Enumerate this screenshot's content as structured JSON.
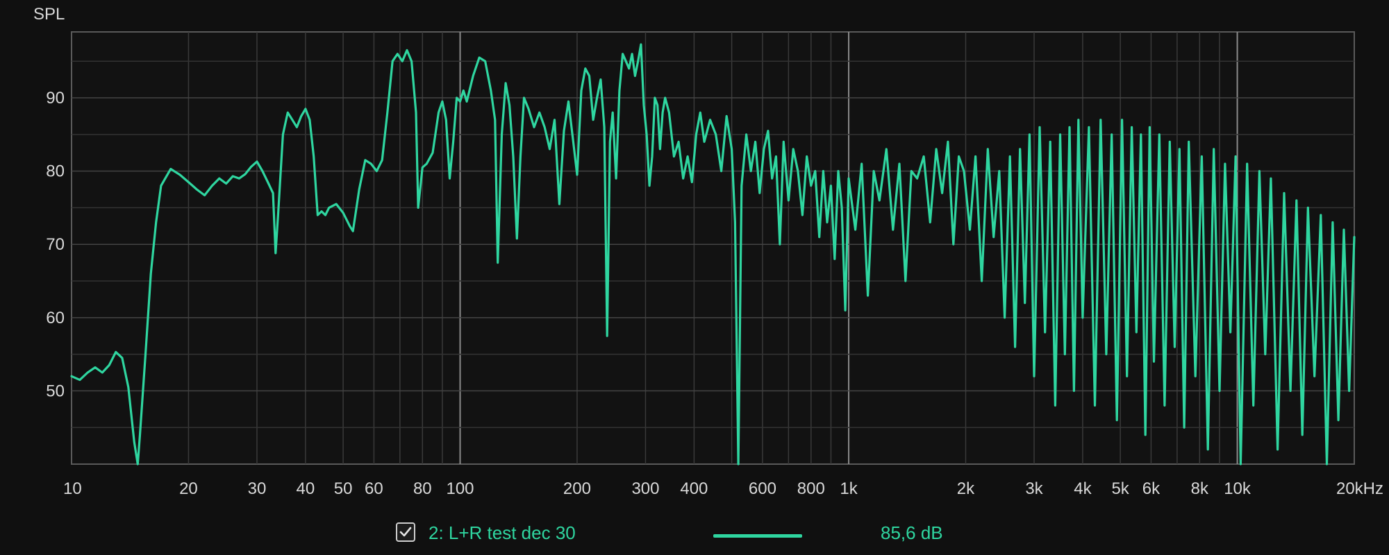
{
  "chart_data": {
    "type": "line",
    "ylabel": "SPL",
    "xscale": "log",
    "xlim": [
      10,
      20000
    ],
    "ylim": [
      40,
      99
    ],
    "yticks": [
      50,
      60,
      70,
      80,
      90
    ],
    "xticks": [
      {
        "v": 10,
        "label": "10"
      },
      {
        "v": 20,
        "label": "20"
      },
      {
        "v": 30,
        "label": "30"
      },
      {
        "v": 40,
        "label": "40"
      },
      {
        "v": 50,
        "label": "50"
      },
      {
        "v": 60,
        "label": "60"
      },
      {
        "v": 80,
        "label": "80"
      },
      {
        "v": 100,
        "label": "100"
      },
      {
        "v": 200,
        "label": "200"
      },
      {
        "v": 300,
        "label": "300"
      },
      {
        "v": 400,
        "label": "400"
      },
      {
        "v": 600,
        "label": "600"
      },
      {
        "v": 800,
        "label": "800"
      },
      {
        "v": 1000,
        "label": "1k"
      },
      {
        "v": 2000,
        "label": "2k"
      },
      {
        "v": 3000,
        "label": "3k"
      },
      {
        "v": 4000,
        "label": "4k"
      },
      {
        "v": 5000,
        "label": "5k"
      },
      {
        "v": 6000,
        "label": "6k"
      },
      {
        "v": 8000,
        "label": "8k"
      },
      {
        "v": 10000,
        "label": "10k"
      },
      {
        "v": 20000,
        "label": "20kHz"
      }
    ],
    "grid": true,
    "legend_position": "bottom",
    "series": [
      {
        "name": "2: L+R test dec 30",
        "color": "#2fd6a0",
        "value_label": "85,6 dB",
        "checked": true,
        "points": [
          [
            10,
            52
          ],
          [
            10.5,
            51.5
          ],
          [
            11,
            52.5
          ],
          [
            11.5,
            53.2
          ],
          [
            12,
            52.5
          ],
          [
            12.5,
            53.5
          ],
          [
            13,
            55.3
          ],
          [
            13.5,
            54.5
          ],
          [
            14,
            50.5
          ],
          [
            14.5,
            43
          ],
          [
            14.8,
            40
          ],
          [
            15,
            44
          ],
          [
            15.5,
            55
          ],
          [
            16,
            66
          ],
          [
            16.5,
            73
          ],
          [
            17,
            78
          ],
          [
            18,
            80.3
          ],
          [
            19,
            79.5
          ],
          [
            20,
            78.5
          ],
          [
            21,
            77.5
          ],
          [
            22,
            76.7
          ],
          [
            23,
            78
          ],
          [
            24,
            79
          ],
          [
            25,
            78.3
          ],
          [
            26,
            79.3
          ],
          [
            27,
            79
          ],
          [
            28,
            79.6
          ],
          [
            29,
            80.6
          ],
          [
            30,
            81.3
          ],
          [
            31,
            80
          ],
          [
            32,
            78.5
          ],
          [
            33,
            77
          ],
          [
            33.5,
            68.8
          ],
          [
            34,
            74
          ],
          [
            35,
            85
          ],
          [
            36,
            88
          ],
          [
            37,
            87
          ],
          [
            38,
            86
          ],
          [
            39,
            87.5
          ],
          [
            40,
            88.5
          ],
          [
            41,
            87
          ],
          [
            42,
            82
          ],
          [
            43,
            74
          ],
          [
            44,
            74.5
          ],
          [
            45,
            74
          ],
          [
            46,
            75
          ],
          [
            48,
            75.5
          ],
          [
            50,
            74.3
          ],
          [
            52,
            72.5
          ],
          [
            53,
            71.8
          ],
          [
            55,
            77.5
          ],
          [
            57,
            81.5
          ],
          [
            59,
            81
          ],
          [
            61,
            80
          ],
          [
            63,
            81.5
          ],
          [
            65,
            88
          ],
          [
            67,
            95
          ],
          [
            69,
            96
          ],
          [
            71,
            95
          ],
          [
            73,
            96.5
          ],
          [
            75,
            95
          ],
          [
            77,
            88
          ],
          [
            78,
            75
          ],
          [
            80,
            80.5
          ],
          [
            82,
            81
          ],
          [
            85,
            82.5
          ],
          [
            88,
            88
          ],
          [
            90,
            89.5
          ],
          [
            92,
            87
          ],
          [
            94,
            79
          ],
          [
            96,
            84
          ],
          [
            98,
            90
          ],
          [
            100,
            89.5
          ],
          [
            102,
            91
          ],
          [
            104,
            89.5
          ],
          [
            108,
            93
          ],
          [
            112,
            95.5
          ],
          [
            116,
            95
          ],
          [
            120,
            91
          ],
          [
            123,
            87
          ],
          [
            125,
            67.5
          ],
          [
            128,
            85
          ],
          [
            131,
            92
          ],
          [
            134,
            89
          ],
          [
            137,
            82
          ],
          [
            140,
            70.8
          ],
          [
            143,
            82
          ],
          [
            146,
            90
          ],
          [
            150,
            88.5
          ],
          [
            155,
            86
          ],
          [
            160,
            88
          ],
          [
            165,
            86
          ],
          [
            170,
            83
          ],
          [
            175,
            87
          ],
          [
            180,
            75.5
          ],
          [
            185,
            85.5
          ],
          [
            190,
            89.5
          ],
          [
            195,
            84.5
          ],
          [
            200,
            79.5
          ],
          [
            205,
            91
          ],
          [
            210,
            94
          ],
          [
            215,
            93
          ],
          [
            220,
            87
          ],
          [
            225,
            90
          ],
          [
            230,
            92.5
          ],
          [
            235,
            86
          ],
          [
            239,
            57.5
          ],
          [
            243,
            84
          ],
          [
            247,
            88
          ],
          [
            252,
            79
          ],
          [
            257,
            91
          ],
          [
            262,
            96
          ],
          [
            267,
            95
          ],
          [
            272,
            94
          ],
          [
            277,
            96
          ],
          [
            282,
            93
          ],
          [
            287,
            95
          ],
          [
            292,
            97.3
          ],
          [
            297,
            89
          ],
          [
            302,
            85
          ],
          [
            307,
            78
          ],
          [
            312,
            82
          ],
          [
            317,
            90
          ],
          [
            322,
            89
          ],
          [
            327,
            83
          ],
          [
            332,
            88
          ],
          [
            337,
            90
          ],
          [
            345,
            88
          ],
          [
            355,
            82
          ],
          [
            365,
            84
          ],
          [
            375,
            79
          ],
          [
            385,
            82
          ],
          [
            395,
            78.5
          ],
          [
            405,
            85
          ],
          [
            415,
            88
          ],
          [
            425,
            84
          ],
          [
            440,
            87
          ],
          [
            455,
            85
          ],
          [
            470,
            80
          ],
          [
            485,
            87.5
          ],
          [
            500,
            83
          ],
          [
            510,
            73
          ],
          [
            520,
            40
          ],
          [
            530,
            78
          ],
          [
            545,
            85
          ],
          [
            560,
            80
          ],
          [
            575,
            84
          ],
          [
            590,
            77
          ],
          [
            605,
            83
          ],
          [
            620,
            85.5
          ],
          [
            635,
            79
          ],
          [
            650,
            82
          ],
          [
            665,
            70
          ],
          [
            680,
            84
          ],
          [
            700,
            76
          ],
          [
            720,
            83
          ],
          [
            740,
            80
          ],
          [
            760,
            74
          ],
          [
            780,
            82
          ],
          [
            800,
            78
          ],
          [
            820,
            80
          ],
          [
            840,
            71
          ],
          [
            860,
            80
          ],
          [
            880,
            73
          ],
          [
            900,
            78
          ],
          [
            920,
            68
          ],
          [
            940,
            80
          ],
          [
            960,
            75
          ],
          [
            980,
            61
          ],
          [
            1000,
            79
          ],
          [
            1040,
            72
          ],
          [
            1080,
            81
          ],
          [
            1120,
            63
          ],
          [
            1160,
            80
          ],
          [
            1200,
            76
          ],
          [
            1250,
            83
          ],
          [
            1300,
            72
          ],
          [
            1350,
            81
          ],
          [
            1400,
            65
          ],
          [
            1450,
            80
          ],
          [
            1500,
            79
          ],
          [
            1560,
            82
          ],
          [
            1620,
            73
          ],
          [
            1680,
            83
          ],
          [
            1740,
            77
          ],
          [
            1800,
            84
          ],
          [
            1860,
            70
          ],
          [
            1920,
            82
          ],
          [
            1980,
            80
          ],
          [
            2050,
            72
          ],
          [
            2120,
            82
          ],
          [
            2200,
            65
          ],
          [
            2280,
            83
          ],
          [
            2360,
            71
          ],
          [
            2440,
            80
          ],
          [
            2520,
            60
          ],
          [
            2600,
            82
          ],
          [
            2680,
            56
          ],
          [
            2760,
            83
          ],
          [
            2840,
            62
          ],
          [
            2920,
            85
          ],
          [
            3000,
            52
          ],
          [
            3100,
            86
          ],
          [
            3200,
            58
          ],
          [
            3300,
            84
          ],
          [
            3400,
            48
          ],
          [
            3500,
            85
          ],
          [
            3600,
            55
          ],
          [
            3700,
            86
          ],
          [
            3800,
            50
          ],
          [
            3900,
            87
          ],
          [
            4000,
            60
          ],
          [
            4150,
            86
          ],
          [
            4300,
            48
          ],
          [
            4450,
            87
          ],
          [
            4600,
            55
          ],
          [
            4750,
            85
          ],
          [
            4900,
            46
          ],
          [
            5050,
            87
          ],
          [
            5200,
            52
          ],
          [
            5350,
            86
          ],
          [
            5500,
            58
          ],
          [
            5650,
            85
          ],
          [
            5800,
            44
          ],
          [
            5950,
            86
          ],
          [
            6100,
            54
          ],
          [
            6300,
            85
          ],
          [
            6500,
            48
          ],
          [
            6700,
            84
          ],
          [
            6900,
            56
          ],
          [
            7100,
            83
          ],
          [
            7300,
            45
          ],
          [
            7500,
            84
          ],
          [
            7800,
            52
          ],
          [
            8100,
            82
          ],
          [
            8400,
            42
          ],
          [
            8700,
            83
          ],
          [
            9000,
            50
          ],
          [
            9300,
            81
          ],
          [
            9600,
            58
          ],
          [
            9900,
            82
          ],
          [
            10200,
            40
          ],
          [
            10600,
            81
          ],
          [
            11000,
            48
          ],
          [
            11400,
            80
          ],
          [
            11800,
            55
          ],
          [
            12200,
            79
          ],
          [
            12700,
            42
          ],
          [
            13200,
            77
          ],
          [
            13700,
            50
          ],
          [
            14200,
            76
          ],
          [
            14700,
            44
          ],
          [
            15200,
            75
          ],
          [
            15800,
            52
          ],
          [
            16400,
            74
          ],
          [
            17000,
            40
          ],
          [
            17600,
            73
          ],
          [
            18200,
            46
          ],
          [
            18800,
            72
          ],
          [
            19400,
            50
          ],
          [
            20000,
            71
          ]
        ]
      }
    ]
  }
}
